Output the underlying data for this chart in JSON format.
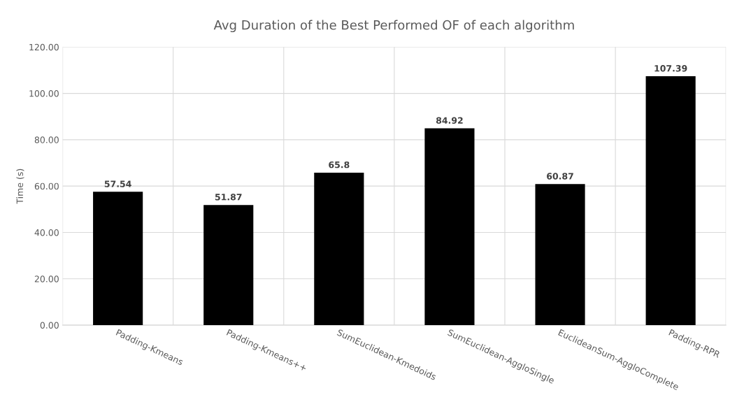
{
  "chart_data": {
    "type": "bar",
    "title": "Avg Duration of the Best Performed OF of each algorithm",
    "ylabel": "Time (s)",
    "categories": [
      "Padding-Kmeans",
      "Padding-Kmeans++",
      "SumEuclidean-Kmedoids",
      "SumEuclidean-AggloSingle",
      "EuclideanSum-AggloComplete",
      "Padding-RPR"
    ],
    "values": [
      57.54,
      51.87,
      65.8,
      84.92,
      60.87,
      107.39
    ],
    "color": "#000000",
    "ylim": [
      0,
      120
    ],
    "yticks": [
      {
        "value": 0,
        "label": "0.00"
      },
      {
        "value": 20,
        "label": "20.00"
      },
      {
        "value": 40,
        "label": "40.00"
      },
      {
        "value": 60,
        "label": "60.00"
      },
      {
        "value": 80,
        "label": "80.00"
      },
      {
        "value": 100,
        "label": "100.00"
      },
      {
        "value": 120,
        "label": "120.00"
      }
    ],
    "grid": true,
    "data_labels": true
  }
}
